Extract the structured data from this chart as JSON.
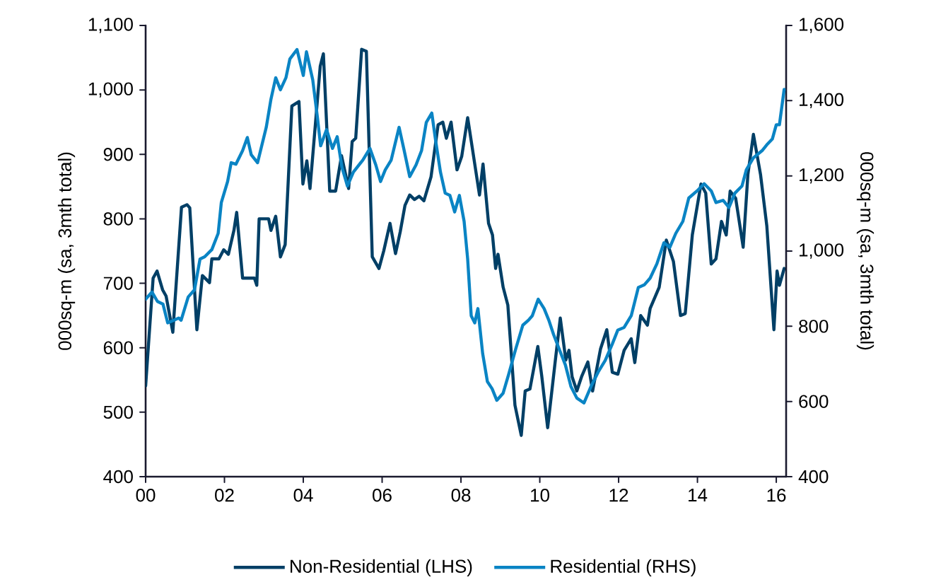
{
  "chart_data": {
    "type": "line",
    "ylabel": "000sq-m (sa, 3mth total)",
    "y2label": "000sq-m (sa, 3mth total)",
    "legend": "bottom",
    "xlim": [
      2000,
      2016.25
    ],
    "xticks": [
      {
        "value": 2000,
        "label": "00"
      },
      {
        "value": 2002,
        "label": "02"
      },
      {
        "value": 2004,
        "label": "04"
      },
      {
        "value": 2006,
        "label": "06"
      },
      {
        "value": 2008,
        "label": "08"
      },
      {
        "value": 2010,
        "label": "10"
      },
      {
        "value": 2012,
        "label": "12"
      },
      {
        "value": 2014,
        "label": "14"
      },
      {
        "value": 2016,
        "label": "16"
      }
    ],
    "ylim": [
      400,
      1100
    ],
    "yticks": [
      400,
      500,
      600,
      700,
      800,
      900,
      {
        "value": 1000,
        "label": "1,000"
      },
      {
        "value": 1100,
        "label": "1,100"
      }
    ],
    "y2lim": [
      400,
      1600
    ],
    "y2ticks": [
      400,
      600,
      800,
      {
        "value": 1000,
        "label": "1,000"
      },
      {
        "value": 1200,
        "label": "1,200"
      },
      {
        "value": 1400,
        "label": "1,400"
      },
      {
        "value": 1600,
        "label": "1,600"
      }
    ],
    "series": [
      {
        "name": "Non-Residential (LHS)",
        "color": "#003f66",
        "axis": "y",
        "x": [
          2000.0,
          2000.19,
          2000.29,
          2000.43,
          2000.52,
          2000.69,
          2000.91,
          2001.05,
          2001.12,
          2001.3,
          2001.44,
          2001.62,
          2001.68,
          2001.86,
          2001.98,
          2002.1,
          2002.24,
          2002.31,
          2002.46,
          2002.76,
          2002.82,
          2002.88,
          2003.12,
          2003.18,
          2003.3,
          2003.42,
          2003.54,
          2003.71,
          2003.89,
          2003.99,
          2004.09,
          2004.17,
          2004.28,
          2004.43,
          2004.51,
          2004.67,
          2004.82,
          2004.97,
          2005.15,
          2005.24,
          2005.33,
          2005.48,
          2005.6,
          2005.75,
          2005.92,
          2006.04,
          2006.2,
          2006.34,
          2006.46,
          2006.58,
          2006.7,
          2006.82,
          2006.94,
          2007.06,
          2007.24,
          2007.42,
          2007.54,
          2007.63,
          2007.75,
          2007.9,
          2008.02,
          2008.17,
          2008.32,
          2008.47,
          2008.56,
          2008.7,
          2008.8,
          2008.88,
          2008.94,
          2009.07,
          2009.19,
          2009.37,
          2009.53,
          2009.63,
          2009.75,
          2009.95,
          2010.05,
          2010.2,
          2010.39,
          2010.52,
          2010.66,
          2010.74,
          2010.82,
          2010.94,
          2011.06,
          2011.22,
          2011.34,
          2011.54,
          2011.7,
          2011.84,
          2011.98,
          2012.14,
          2012.32,
          2012.41,
          2012.56,
          2012.73,
          2012.8,
          2013.03,
          2013.21,
          2013.39,
          2013.57,
          2013.69,
          2013.87,
          2014.09,
          2014.21,
          2014.35,
          2014.47,
          2014.61,
          2014.73,
          2014.83,
          2014.97,
          2015.16,
          2015.28,
          2015.42,
          2015.6,
          2015.76,
          2015.94,
          2016.02,
          2016.08,
          2016.2
        ],
        "values": [
          541,
          708,
          719,
          690,
          680,
          624,
          818,
          822,
          817,
          628,
          712,
          701,
          738,
          738,
          752,
          745,
          782,
          810,
          708,
          708,
          697,
          800,
          800,
          782,
          804,
          741,
          760,
          975,
          982,
          854,
          890,
          847,
          927,
          1037,
          1056,
          843,
          843,
          898,
          847,
          920,
          925,
          1063,
          1060,
          741,
          723,
          750,
          793,
          746,
          780,
          821,
          837,
          830,
          835,
          828,
          865,
          946,
          950,
          925,
          950,
          876,
          897,
          957,
          897,
          837,
          885,
          793,
          775,
          723,
          745,
          694,
          666,
          511,
          464,
          533,
          536,
          602,
          556,
          476,
          578,
          646,
          581,
          596,
          555,
          533,
          555,
          578,
          533,
          598,
          628,
          562,
          559,
          596,
          614,
          577,
          650,
          635,
          661,
          694,
          767,
          734,
          650,
          653,
          775,
          854,
          840,
          730,
          738,
          796,
          775,
          843,
          832,
          756,
          869,
          931,
          869,
          789,
          628,
          719,
          697,
          723
        ]
      },
      {
        "name": "Residential (RHS)",
        "color": "#0a84c4",
        "axis": "y2",
        "x": [
          2000.0,
          2000.16,
          2000.3,
          2000.44,
          2000.56,
          2000.72,
          2000.84,
          2000.9,
          2001.08,
          2001.24,
          2001.38,
          2001.5,
          2001.68,
          2001.84,
          2001.92,
          2002.08,
          2002.17,
          2002.29,
          2002.46,
          2002.58,
          2002.68,
          2002.84,
          2003.06,
          2003.18,
          2003.3,
          2003.42,
          2003.56,
          2003.66,
          2003.84,
          2004.0,
          2004.08,
          2004.24,
          2004.36,
          2004.44,
          2004.59,
          2004.74,
          2004.86,
          2004.98,
          2005.12,
          2005.27,
          2005.51,
          2005.69,
          2005.84,
          2005.96,
          2006.08,
          2006.23,
          2006.43,
          2006.56,
          2006.7,
          2006.86,
          2007.0,
          2007.12,
          2007.26,
          2007.36,
          2007.48,
          2007.6,
          2007.72,
          2007.84,
          2007.96,
          2008.08,
          2008.17,
          2008.26,
          2008.35,
          2008.43,
          2008.55,
          2008.67,
          2008.79,
          2008.91,
          2009.07,
          2009.21,
          2009.39,
          2009.57,
          2009.71,
          2009.81,
          2009.96,
          2010.11,
          2010.23,
          2010.35,
          2010.49,
          2010.65,
          2010.79,
          2010.94,
          2011.12,
          2011.3,
          2011.48,
          2011.66,
          2011.84,
          2011.98,
          2012.14,
          2012.32,
          2012.5,
          2012.65,
          2012.8,
          2012.97,
          2013.15,
          2013.3,
          2013.45,
          2013.63,
          2013.78,
          2013.99,
          2014.17,
          2014.35,
          2014.47,
          2014.65,
          2014.8,
          2014.95,
          2015.13,
          2015.24,
          2015.42,
          2015.64,
          2015.78,
          2015.9,
          2016.0,
          2016.08,
          2016.2
        ],
        "values": [
          872,
          891,
          866,
          859,
          809,
          816,
          822,
          816,
          878,
          897,
          979,
          985,
          1004,
          1047,
          1129,
          1185,
          1235,
          1231,
          1267,
          1302,
          1256,
          1235,
          1329,
          1404,
          1461,
          1429,
          1461,
          1511,
          1536,
          1467,
          1530,
          1455,
          1354,
          1280,
          1323,
          1273,
          1304,
          1223,
          1173,
          1210,
          1242,
          1273,
          1229,
          1185,
          1216,
          1242,
          1329,
          1267,
          1198,
          1229,
          1267,
          1342,
          1367,
          1292,
          1210,
          1154,
          1148,
          1104,
          1148,
          1079,
          979,
          828,
          809,
          847,
          728,
          653,
          634,
          603,
          622,
          672,
          740,
          803,
          816,
          828,
          872,
          847,
          816,
          778,
          740,
          697,
          640,
          609,
          596,
          640,
          678,
          709,
          753,
          790,
          797,
          828,
          903,
          910,
          928,
          966,
          1022,
          1010,
          1047,
          1079,
          1141,
          1160,
          1179,
          1160,
          1129,
          1135,
          1116,
          1154,
          1173,
          1216,
          1248,
          1267,
          1285,
          1298,
          1336,
          1336,
          1430
        ]
      }
    ]
  }
}
